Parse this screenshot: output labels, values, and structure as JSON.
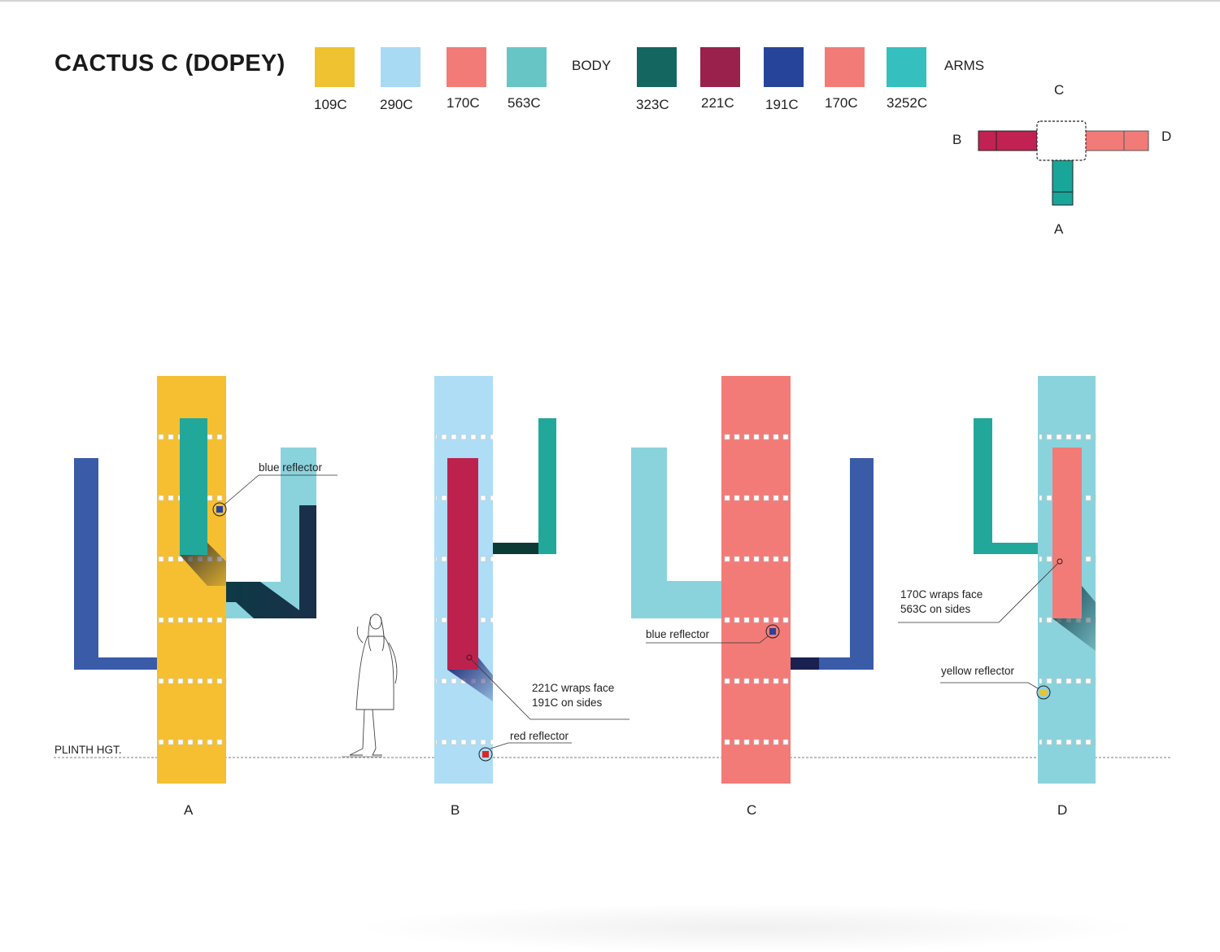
{
  "title": "CACTUS C (DOPEY)",
  "body_group": {
    "label": "BODY",
    "swatches": [
      {
        "code": "109C",
        "color": "#EEC230"
      },
      {
        "code": "290C",
        "color": "#A8DAF3"
      },
      {
        "code": "170C",
        "color": "#F27B78"
      },
      {
        "code": "563C",
        "color": "#67C6C5"
      }
    ]
  },
  "arms_group": {
    "label": "ARMS",
    "swatches": [
      {
        "code": "323C",
        "color": "#136760"
      },
      {
        "code": "221C",
        "color": "#99214B"
      },
      {
        "code": "191C",
        "color": "#26449A"
      },
      {
        "code": "170C",
        "color": "#F27B78"
      },
      {
        "code": "3252C",
        "color": "#35BFBF"
      }
    ]
  },
  "plan": {
    "labels": {
      "a": "A",
      "b": "B",
      "c": "C",
      "d": "D"
    }
  },
  "elevations": [
    {
      "label": "A",
      "body_color": "#F5BF31"
    },
    {
      "label": "B",
      "body_color": "#AEDDF5"
    },
    {
      "label": "C",
      "body_color": "#F27B78"
    },
    {
      "label": "D",
      "body_color": "#8BD3DC"
    }
  ],
  "callouts": {
    "a_blue_reflector": "blue reflector",
    "b_wrap_line1": "221C wraps face",
    "b_wrap_line2": "191C on sides",
    "b_red_reflector": "red reflector",
    "c_blue_reflector": "blue reflector",
    "d_wrap_line1": "170C wraps face",
    "d_wrap_line2": "563C on sides",
    "d_yellow_reflector": "yellow reflector"
  },
  "plinth_label": "PLINTH HGT."
}
